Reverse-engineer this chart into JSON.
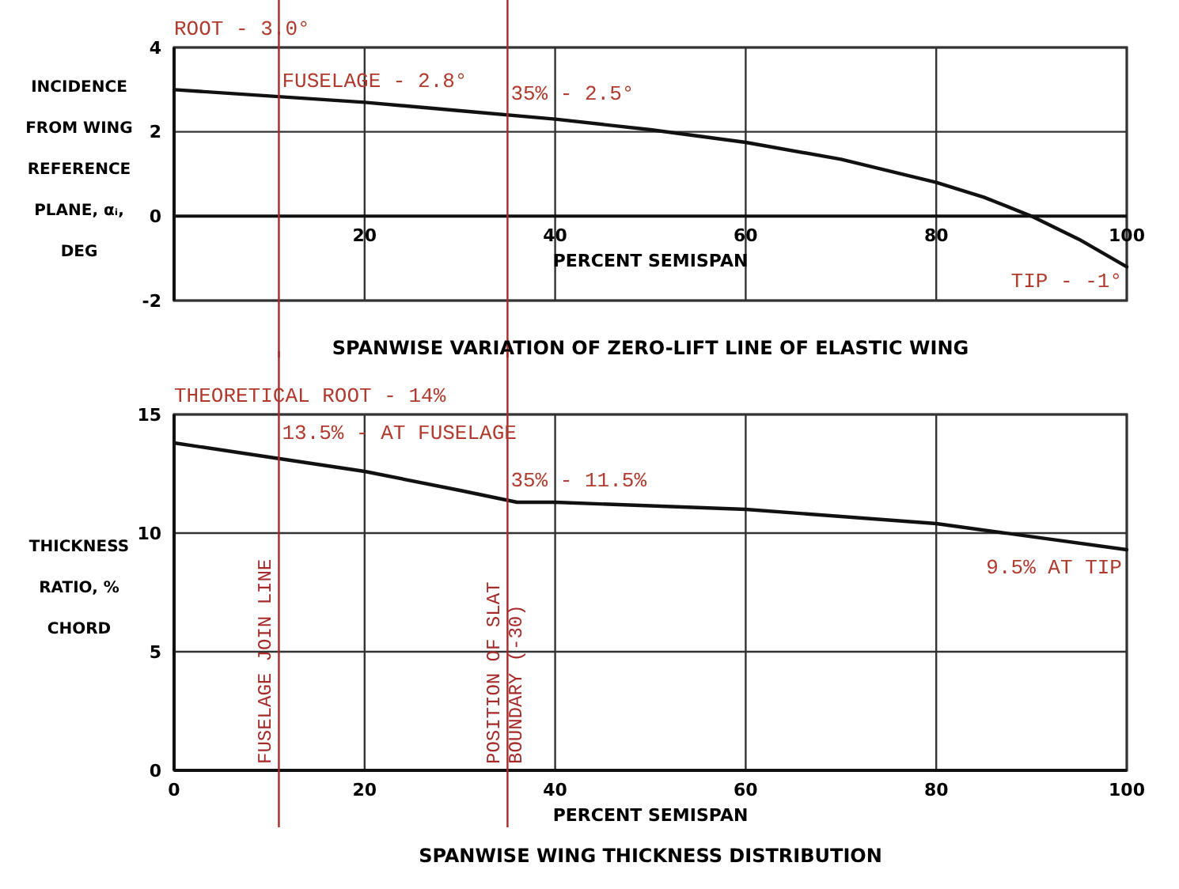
{
  "chart_data": [
    {
      "type": "line",
      "title": "SPANWISE VARIATION OF ZERO-LIFT LINE OF ELASTIC WING",
      "xlabel": "PERCENT SEMISPAN",
      "ylabel": "INCIDENCE FROM WING REFERENCE PLANE, αᵢ, DEG",
      "x": [
        0,
        10,
        20,
        30,
        40,
        50,
        60,
        70,
        80,
        85,
        90,
        95,
        100
      ],
      "series": [
        {
          "color": "#111111",
          "values": [
            3.0,
            2.85,
            2.7,
            2.5,
            2.3,
            2.05,
            1.75,
            1.35,
            0.8,
            0.45,
            0.0,
            -0.55,
            -1.2
          ]
        }
      ],
      "xlim": [
        0,
        100
      ],
      "xticks": [
        20,
        40,
        60,
        80,
        100
      ],
      "ylim": [
        -2,
        4
      ],
      "yticks": [
        -2,
        0,
        2,
        4
      ],
      "grid": true,
      "ref_lines": [
        {
          "axis": "x",
          "value": 11,
          "color": "#a52a2a"
        },
        {
          "axis": "x",
          "value": 35,
          "color": "#a52a2a"
        }
      ],
      "annotations": [
        {
          "text": "ROOT - 3.0°",
          "x": 0,
          "y": 3.0
        },
        {
          "text": "FUSELAGE - 2.8°",
          "x": 11,
          "y": 2.8
        },
        {
          "text": "35% - 2.5°",
          "x": 35,
          "y": 2.5
        },
        {
          "text": "TIP - -1°",
          "x": 100,
          "y": -1
        }
      ]
    },
    {
      "type": "line",
      "title": "SPANWISE WING THICKNESS DISTRIBUTION",
      "xlabel": "PERCENT SEMISPAN",
      "ylabel": "THICKNESS RATIO, % CHORD",
      "x": [
        0,
        10,
        20,
        30,
        36,
        40,
        60,
        80,
        100
      ],
      "series": [
        {
          "color": "#111111",
          "values": [
            13.8,
            13.2,
            12.6,
            11.8,
            11.3,
            11.3,
            11.0,
            10.4,
            9.3
          ]
        }
      ],
      "xlim": [
        0,
        100
      ],
      "xticks": [
        0,
        20,
        40,
        60,
        80,
        100
      ],
      "ylim": [
        0,
        15
      ],
      "yticks": [
        0,
        5,
        10,
        15
      ],
      "grid": true,
      "ref_lines": [
        {
          "axis": "x",
          "value": 11,
          "label": "FUSELAGE JOIN LINE",
          "color": "#a52a2a"
        },
        {
          "axis": "x",
          "value": 35,
          "label": "POSITION OF SLAT BOUNDARY (-30)",
          "color": "#a52a2a"
        }
      ],
      "annotations": [
        {
          "text": "THEORETICAL ROOT - 14%",
          "x": 0,
          "y": 14
        },
        {
          "text": "13.5% - AT FUSELAGE",
          "x": 11,
          "y": 13.5
        },
        {
          "text": "35% - 11.5%",
          "x": 35,
          "y": 11.5
        },
        {
          "text": "9.5% AT TIP",
          "x": 100,
          "y": 9.5
        }
      ]
    }
  ]
}
